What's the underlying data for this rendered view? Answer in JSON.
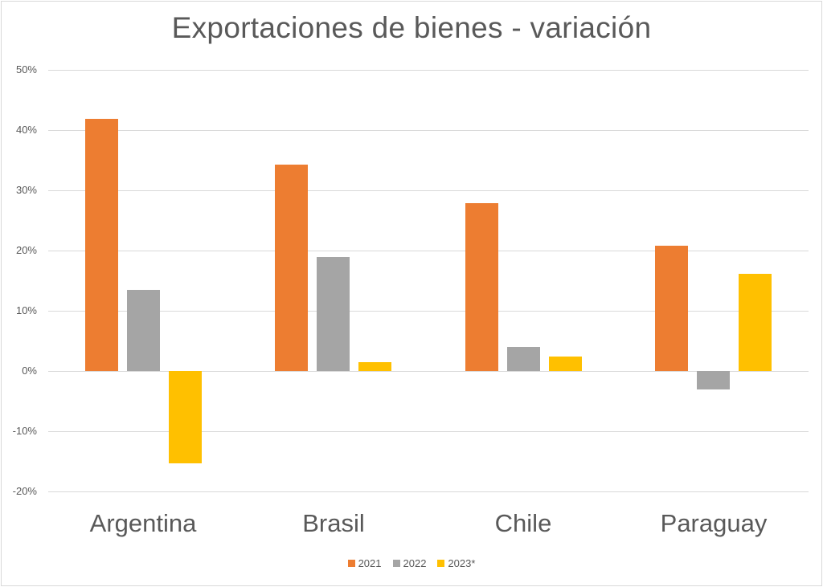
{
  "chart_data": {
    "type": "bar",
    "title": "Exportaciones de bienes - variación",
    "xlabel": "",
    "ylabel": "",
    "categories": [
      "Argentina",
      "Brasil",
      "Chile",
      "Paraguay"
    ],
    "series": [
      {
        "name": "2021",
        "color": "#ED7D31",
        "values": [
          41.9,
          34.3,
          27.9,
          20.8
        ]
      },
      {
        "name": "2022",
        "color": "#A5A5A5",
        "values": [
          13.5,
          18.9,
          4.0,
          -3.1
        ]
      },
      {
        "name": "2023*",
        "color": "#FFC000",
        "values": [
          -15.3,
          1.5,
          2.4,
          16.1
        ]
      }
    ],
    "ylim": [
      -20,
      50
    ],
    "yticks": [
      "50%",
      "40%",
      "30%",
      "20%",
      "10%",
      "0%",
      "-10%",
      "-20%"
    ],
    "ytick_values": [
      50,
      40,
      30,
      20,
      10,
      0,
      -10,
      -20
    ],
    "grid": true,
    "legend_position": "bottom"
  }
}
